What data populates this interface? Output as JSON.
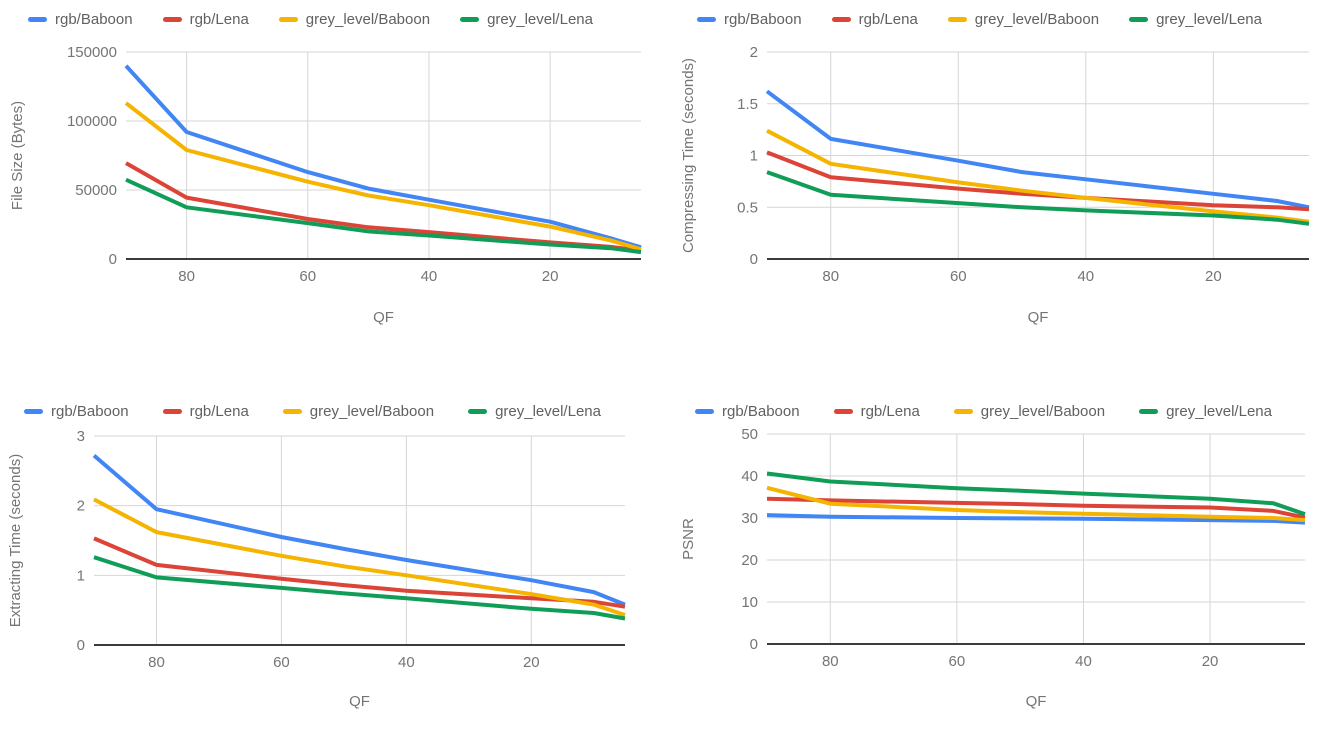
{
  "palette": {
    "blue": "#4285F4",
    "red": "#DB4437",
    "yellow": "#F4B400",
    "green": "#0F9D58"
  },
  "chart_data": [
    {
      "id": "file-size",
      "type": "line",
      "xlabel": "QF",
      "ylabel": "File Size (Bytes)",
      "x": [
        90,
        80,
        60,
        50,
        40,
        20,
        10,
        5
      ],
      "xlim": [
        90,
        5
      ],
      "x_axis_reversed": true,
      "x_ticks": [
        80,
        60,
        40,
        20
      ],
      "x_tick_labels": [
        "80",
        "60",
        "40",
        "20"
      ],
      "ylim": [
        0,
        150000
      ],
      "y_ticks": [
        0,
        50000,
        100000,
        150000
      ],
      "y_tick_labels": [
        "0",
        "50000",
        "100000",
        "150000"
      ],
      "grid": true,
      "legend_position": "top",
      "series": [
        {
          "name": "rgb/Baboon",
          "color": "#4285F4",
          "values": [
            140000,
            92000,
            63000,
            51000,
            43000,
            27000,
            15000,
            8500
          ]
        },
        {
          "name": "rgb/Lena",
          "color": "#DB4437",
          "values": [
            69500,
            44500,
            29000,
            23000,
            19500,
            12000,
            8800,
            6000
          ]
        },
        {
          "name": "grey_level/Baboon",
          "color": "#F4B400",
          "values": [
            113000,
            79000,
            56000,
            46000,
            39000,
            23500,
            13500,
            7000
          ]
        },
        {
          "name": "grey_level/Lena",
          "color": "#0F9D58",
          "values": [
            57500,
            37500,
            26000,
            20000,
            17000,
            10500,
            7800,
            5000
          ]
        }
      ]
    },
    {
      "id": "compressing-time",
      "type": "line",
      "xlabel": "QF",
      "ylabel": "Compressing Time (seconds)",
      "x": [
        90,
        80,
        60,
        50,
        40,
        20,
        10,
        5
      ],
      "xlim": [
        90,
        5
      ],
      "x_axis_reversed": true,
      "x_ticks": [
        80,
        60,
        40,
        20
      ],
      "x_tick_labels": [
        "80",
        "60",
        "40",
        "20"
      ],
      "ylim": [
        0,
        2
      ],
      "y_ticks": [
        0,
        0.5,
        1,
        1.5,
        2
      ],
      "y_tick_labels": [
        "0",
        "0.5",
        "1",
        "1.5",
        "2"
      ],
      "grid": true,
      "legend_position": "top",
      "series": [
        {
          "name": "rgb/Baboon",
          "color": "#4285F4",
          "values": [
            1.62,
            1.16,
            0.95,
            0.84,
            0.77,
            0.63,
            0.56,
            0.5
          ]
        },
        {
          "name": "rgb/Lena",
          "color": "#DB4437",
          "values": [
            1.03,
            0.79,
            0.68,
            0.63,
            0.59,
            0.52,
            0.5,
            0.48
          ]
        },
        {
          "name": "grey_level/Baboon",
          "color": "#F4B400",
          "values": [
            1.24,
            0.92,
            0.74,
            0.66,
            0.59,
            0.46,
            0.4,
            0.36
          ]
        },
        {
          "name": "grey_level/Lena",
          "color": "#0F9D58",
          "values": [
            0.84,
            0.62,
            0.54,
            0.5,
            0.47,
            0.42,
            0.38,
            0.34
          ]
        }
      ]
    },
    {
      "id": "extracting-time",
      "type": "line",
      "xlabel": "QF",
      "ylabel": "Extracting Time (seconds)",
      "x": [
        90,
        80,
        60,
        50,
        40,
        20,
        10,
        5
      ],
      "xlim": [
        90,
        5
      ],
      "x_axis_reversed": true,
      "x_ticks": [
        80,
        60,
        40,
        20
      ],
      "x_tick_labels": [
        "80",
        "60",
        "40",
        "20"
      ],
      "ylim": [
        0,
        3
      ],
      "y_ticks": [
        0,
        1,
        2,
        3
      ],
      "y_tick_labels": [
        "0",
        "1",
        "2",
        "3"
      ],
      "grid": true,
      "legend_position": "top",
      "series": [
        {
          "name": "rgb/Baboon",
          "color": "#4285F4",
          "values": [
            2.72,
            1.95,
            1.55,
            1.38,
            1.22,
            0.93,
            0.76,
            0.58
          ]
        },
        {
          "name": "rgb/Lena",
          "color": "#DB4437",
          "values": [
            1.53,
            1.15,
            0.95,
            0.86,
            0.78,
            0.67,
            0.62,
            0.55
          ]
        },
        {
          "name": "grey_level/Baboon",
          "color": "#F4B400",
          "values": [
            2.09,
            1.62,
            1.28,
            1.13,
            1.0,
            0.73,
            0.58,
            0.43
          ]
        },
        {
          "name": "grey_level/Lena",
          "color": "#0F9D58",
          "values": [
            1.26,
            0.97,
            0.82,
            0.74,
            0.67,
            0.52,
            0.46,
            0.38
          ]
        }
      ]
    },
    {
      "id": "psnr",
      "type": "line",
      "xlabel": "QF",
      "ylabel": "PSNR",
      "x": [
        90,
        80,
        60,
        50,
        40,
        20,
        10,
        5
      ],
      "xlim": [
        90,
        5
      ],
      "x_axis_reversed": true,
      "x_ticks": [
        80,
        60,
        40,
        20
      ],
      "x_tick_labels": [
        "80",
        "60",
        "40",
        "20"
      ],
      "ylim": [
        0,
        50
      ],
      "y_ticks": [
        0,
        10,
        20,
        30,
        40,
        50
      ],
      "y_tick_labels": [
        "0",
        "10",
        "20",
        "30",
        "40",
        "50"
      ],
      "grid": true,
      "legend_position": "top",
      "series": [
        {
          "name": "rgb/Baboon",
          "color": "#4285F4",
          "values": [
            30.7,
            30.3,
            30.0,
            29.9,
            29.8,
            29.5,
            29.3,
            28.9
          ]
        },
        {
          "name": "rgb/Lena",
          "color": "#DB4437",
          "values": [
            34.6,
            34.2,
            33.6,
            33.3,
            32.9,
            32.5,
            31.7,
            30.1
          ]
        },
        {
          "name": "grey_level/Baboon",
          "color": "#F4B400",
          "values": [
            37.2,
            33.4,
            31.9,
            31.4,
            31.0,
            30.3,
            30.0,
            29.5
          ]
        },
        {
          "name": "grey_level/Lena",
          "color": "#0F9D58",
          "values": [
            40.6,
            38.7,
            37.1,
            36.5,
            35.8,
            34.6,
            33.5,
            30.9
          ]
        }
      ]
    }
  ]
}
